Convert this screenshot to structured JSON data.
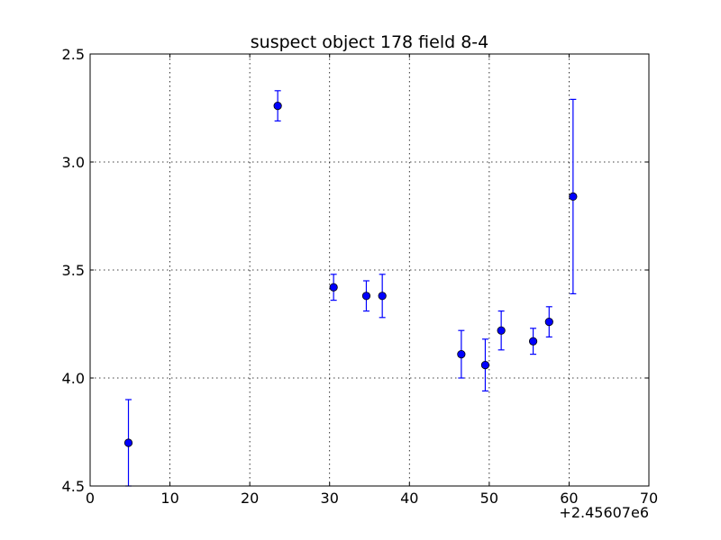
{
  "chart_data": {
    "type": "scatter",
    "title": "suspect object 178 field 8-4",
    "xlabel": "",
    "ylabel": "",
    "x_offset_label": "+2.45607e6",
    "xlim": [
      0,
      70
    ],
    "ylim": [
      4.5,
      2.5
    ],
    "y_inverted": true,
    "grid": true,
    "x_ticks": [
      0,
      10,
      20,
      30,
      40,
      50,
      60,
      70
    ],
    "x_tick_labels": [
      "0",
      "10",
      "20",
      "30",
      "40",
      "50",
      "60",
      "70"
    ],
    "y_ticks": [
      2.5,
      3.0,
      3.5,
      4.0,
      4.5
    ],
    "y_tick_labels": [
      "2.5",
      "3.0",
      "3.5",
      "4.0",
      "4.5"
    ],
    "marker_color": "#0000ff",
    "errorbar_color": "#0000ff",
    "series": [
      {
        "points": [
          {
            "x": 4.8,
            "y": 4.3,
            "err": 0.2
          },
          {
            "x": 23.5,
            "y": 2.74,
            "err": 0.07
          },
          {
            "x": 30.5,
            "y": 3.58,
            "err": 0.06
          },
          {
            "x": 34.6,
            "y": 3.62,
            "err": 0.07
          },
          {
            "x": 36.6,
            "y": 3.62,
            "err": 0.1
          },
          {
            "x": 46.5,
            "y": 3.89,
            "err": 0.11
          },
          {
            "x": 49.5,
            "y": 3.94,
            "err": 0.12
          },
          {
            "x": 51.5,
            "y": 3.78,
            "err": 0.09
          },
          {
            "x": 55.5,
            "y": 3.83,
            "err": 0.06
          },
          {
            "x": 57.5,
            "y": 3.74,
            "err": 0.07
          },
          {
            "x": 60.5,
            "y": 3.16,
            "err": 0.45
          }
        ]
      }
    ]
  }
}
